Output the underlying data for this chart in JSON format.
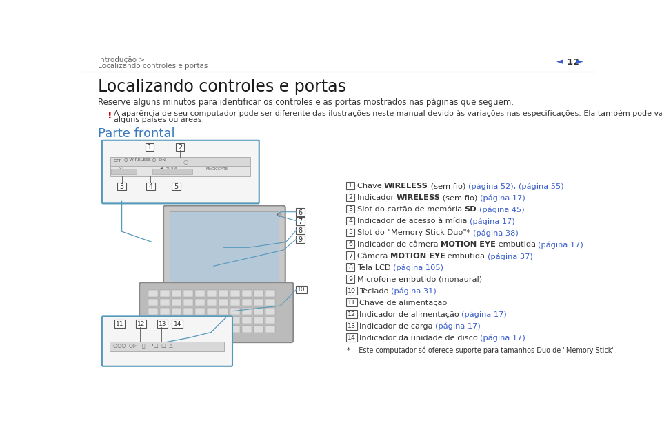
{
  "bg_color": "#ffffff",
  "header_text1": "Introdução >",
  "header_text2": "Localizando controles e portas",
  "page_num": "12",
  "title": "Localizando controles e portas",
  "subtitle": "Reserve alguns minutos para identificar os controles e as portas mostrados nas páginas que seguem.",
  "warning_symbol": "!",
  "warning_color": "#cc0000",
  "warning_text_line1": "A aparência de seu computador pode ser diferente das ilustrações neste manual devido às variações nas especificações. Ela também pode variar em",
  "warning_text_line2": "alguns países ou áreas.",
  "section_title": "Parte frontal",
  "section_title_color": "#3a7abf",
  "text_color": "#333333",
  "link_color": "#3a5fcc",
  "diagram_border_color": "#5599bb",
  "items": [
    {
      "num": "1",
      "plain1": "Chave ",
      "bold": "WIRELESS",
      "plain2": " (sem fio) ",
      "link": "(página 52), (página 55)"
    },
    {
      "num": "2",
      "plain1": "Indicador ",
      "bold": "WIRELESS",
      "plain2": " (sem fio) ",
      "link": "(página 17)"
    },
    {
      "num": "3",
      "plain1": "Slot do cartão de memória ",
      "bold": "SD",
      "plain2": " ",
      "link": "(página 45)"
    },
    {
      "num": "4",
      "plain1": "Indicador de acesso à mídia ",
      "bold": "",
      "plain2": "",
      "link": "(página 17)"
    },
    {
      "num": "5",
      "plain1": "Slot do \"Memory Stick Duo\"* ",
      "bold": "",
      "plain2": "",
      "link": "(página 38)"
    },
    {
      "num": "6",
      "plain1": "Indicador de câmera ",
      "bold": "MOTION EYE",
      "plain2": " embutida ",
      "link": "(página 17)"
    },
    {
      "num": "7",
      "plain1": "Câmera ",
      "bold": "MOTION EYE",
      "plain2": " embutida ",
      "link": "(página 37)"
    },
    {
      "num": "8",
      "plain1": "Tela LCD ",
      "bold": "",
      "plain2": "",
      "link": "(página 105)"
    },
    {
      "num": "9",
      "plain1": "Microfone embutido (monaural)",
      "bold": "",
      "plain2": "",
      "link": ""
    },
    {
      "num": "10",
      "plain1": "Teclado ",
      "bold": "",
      "plain2": "",
      "link": "(página 31)"
    },
    {
      "num": "11",
      "plain1": "Chave de alimentação",
      "bold": "",
      "plain2": "",
      "link": ""
    },
    {
      "num": "12",
      "plain1": "Indicador de alimentação ",
      "bold": "",
      "plain2": "",
      "link": "(página 17)"
    },
    {
      "num": "13",
      "plain1": "Indicador de carga ",
      "bold": "",
      "plain2": "",
      "link": "(página 17)"
    },
    {
      "num": "14",
      "plain1": "Indicador da unidade de disco ",
      "bold": "",
      "plain2": "",
      "link": "(página 17)"
    }
  ],
  "footnote": "*    Este computador só oferece suporte para tamanhos Duo de \"Memory Stick\"."
}
